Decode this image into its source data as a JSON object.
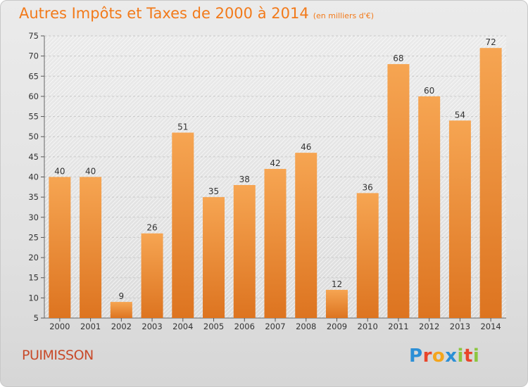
{
  "title": "Autres Impôts et Taxes de 2000 à 2014",
  "subtitle": "(en milliers d'€)",
  "commune": "PUIMISSON",
  "logo": {
    "p": "P",
    "r": "r",
    "o": "o",
    "x": "x",
    "i": "i",
    "t": "t",
    "i2": "i"
  },
  "colors": {
    "title": "#f27a1a",
    "bar_top": "#f6a552",
    "bar_bottom": "#dd7420",
    "commune": "#c84a2a"
  },
  "chart_data": {
    "type": "bar",
    "categories": [
      "2000",
      "2001",
      "2002",
      "2003",
      "2004",
      "2005",
      "2006",
      "2007",
      "2008",
      "2009",
      "2010",
      "2011",
      "2012",
      "2013",
      "2014"
    ],
    "values": [
      40,
      40,
      9,
      26,
      51,
      35,
      38,
      42,
      46,
      12,
      36,
      68,
      60,
      54,
      72
    ],
    "ylim": [
      5,
      75
    ],
    "yticks": [
      5,
      10,
      15,
      20,
      25,
      30,
      35,
      40,
      45,
      50,
      55,
      60,
      65,
      70,
      75
    ],
    "grid": true
  }
}
